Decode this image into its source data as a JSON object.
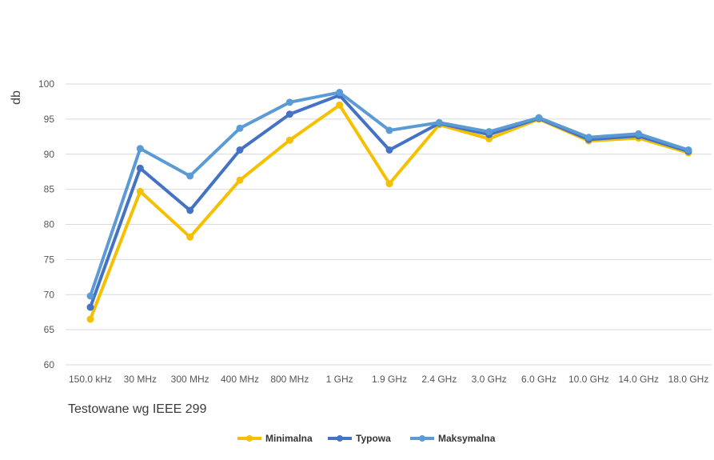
{
  "chart_data": {
    "type": "line",
    "title": "",
    "xlabel": "Testowane wg IEEE 299",
    "ylabel": "db",
    "ylim": [
      60,
      100
    ],
    "yticks": [
      60,
      65,
      70,
      75,
      80,
      85,
      90,
      95,
      100
    ],
    "grid": true,
    "legend_position": "bottom",
    "categories": [
      "150.0 kHz",
      "30 MHz",
      "300 MHz",
      "400 MHz",
      "800 MHz",
      "1 GHz",
      "1.9 GHz",
      "2.4 GHz",
      "3.0 GHz",
      "6.0 GHz",
      "10.0 GHz",
      "14.0 GHz",
      "18.0 GHz"
    ],
    "series": [
      {
        "name": "Minimalna",
        "color": "#F5C000",
        "values": [
          66.5,
          84.7,
          78.2,
          86.3,
          92.0,
          97.0,
          85.8,
          94.2,
          92.2,
          95.0,
          91.9,
          92.3,
          90.2
        ]
      },
      {
        "name": "Typowa",
        "color": "#4472C4",
        "values": [
          68.2,
          88.0,
          82.0,
          90.6,
          95.7,
          98.4,
          90.6,
          94.4,
          92.8,
          95.1,
          92.1,
          92.6,
          90.4
        ]
      },
      {
        "name": "Maksymalna",
        "color": "#5B9BD5",
        "values": [
          69.8,
          90.8,
          86.9,
          93.7,
          97.4,
          98.8,
          93.4,
          94.5,
          93.2,
          95.2,
          92.4,
          92.9,
          90.6
        ]
      }
    ]
  }
}
